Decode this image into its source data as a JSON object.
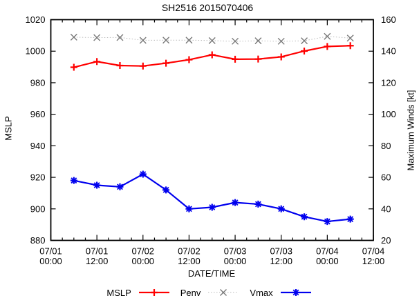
{
  "title": "SH2516 2015070406",
  "axes": {
    "x_label": "DATE/TIME",
    "y_left_label": "MSLP",
    "y_right_label": "Maximum Winds [kt]"
  },
  "legend": {
    "items": [
      {
        "label": "MSLP"
      },
      {
        "label": "Penv"
      },
      {
        "label": "Vmax"
      }
    ]
  },
  "chart_data": {
    "type": "line",
    "title": "SH2516 2015070406",
    "xlabel": "DATE/TIME",
    "ylabel_left": "MSLP",
    "ylabel_right": "Maximum Winds [kt]",
    "grid": false,
    "legend_position": "bottom-center",
    "x_axis": {
      "range_hours": [
        0,
        84
      ],
      "major_tick_every_hours": 12,
      "minor_tick_every_hours": 3,
      "major_tick_labels": [
        [
          "07/01",
          "00:00"
        ],
        [
          "07/01",
          "12:00"
        ],
        [
          "07/02",
          "00:00"
        ],
        [
          "07/02",
          "12:00"
        ],
        [
          "07/03",
          "00:00"
        ],
        [
          "07/03",
          "12:00"
        ],
        [
          "07/04",
          "00:00"
        ],
        [
          "07/04",
          "12:00"
        ]
      ]
    },
    "y_axis_left": {
      "range": [
        880,
        1020
      ],
      "tick_step": 20,
      "labels": [
        "880",
        "900",
        "920",
        "940",
        "960",
        "980",
        "1000",
        "1020"
      ]
    },
    "y_axis_right": {
      "range": [
        20,
        160
      ],
      "tick_step": 20,
      "labels": [
        "20",
        "40",
        "60",
        "80",
        "100",
        "120",
        "140",
        "160"
      ]
    },
    "x_hours": [
      6,
      12,
      18,
      24,
      30,
      36,
      42,
      48,
      54,
      60,
      66,
      72,
      78
    ],
    "x_times": [
      "07/01 06:00",
      "07/01 12:00",
      "07/01 18:00",
      "07/02 00:00",
      "07/02 06:00",
      "07/02 12:00",
      "07/02 18:00",
      "07/03 00:00",
      "07/03 06:00",
      "07/03 12:00",
      "07/03 18:00",
      "07/04 00:00",
      "07/04 06:00"
    ],
    "series": [
      {
        "name": "MSLP",
        "axis": "left",
        "color": "#ff0000",
        "line": "solid",
        "marker": "plus",
        "values": [
          989.8,
          993.4,
          990.9,
          990.6,
          992.4,
          994.6,
          997.7,
          994.9,
          995.0,
          996.4,
          1000.1,
          1003.0,
          1003.5
        ]
      },
      {
        "name": "Penv",
        "axis": "left",
        "color": "#bbbbbb",
        "marker_color": "#787878",
        "line": "dotted",
        "marker": "cross",
        "values": [
          1008.9,
          1008.6,
          1008.7,
          1006.9,
          1007.0,
          1007.0,
          1006.7,
          1006.3,
          1006.6,
          1006.3,
          1006.6,
          1009.4,
          1008.3
        ]
      },
      {
        "name": "Vmax",
        "axis": "right",
        "color": "#0000ee",
        "line": "solid",
        "marker": "star",
        "values": [
          58,
          55,
          54,
          62,
          52,
          40,
          41,
          44,
          43,
          40,
          35,
          32,
          33.5
        ]
      }
    ]
  }
}
